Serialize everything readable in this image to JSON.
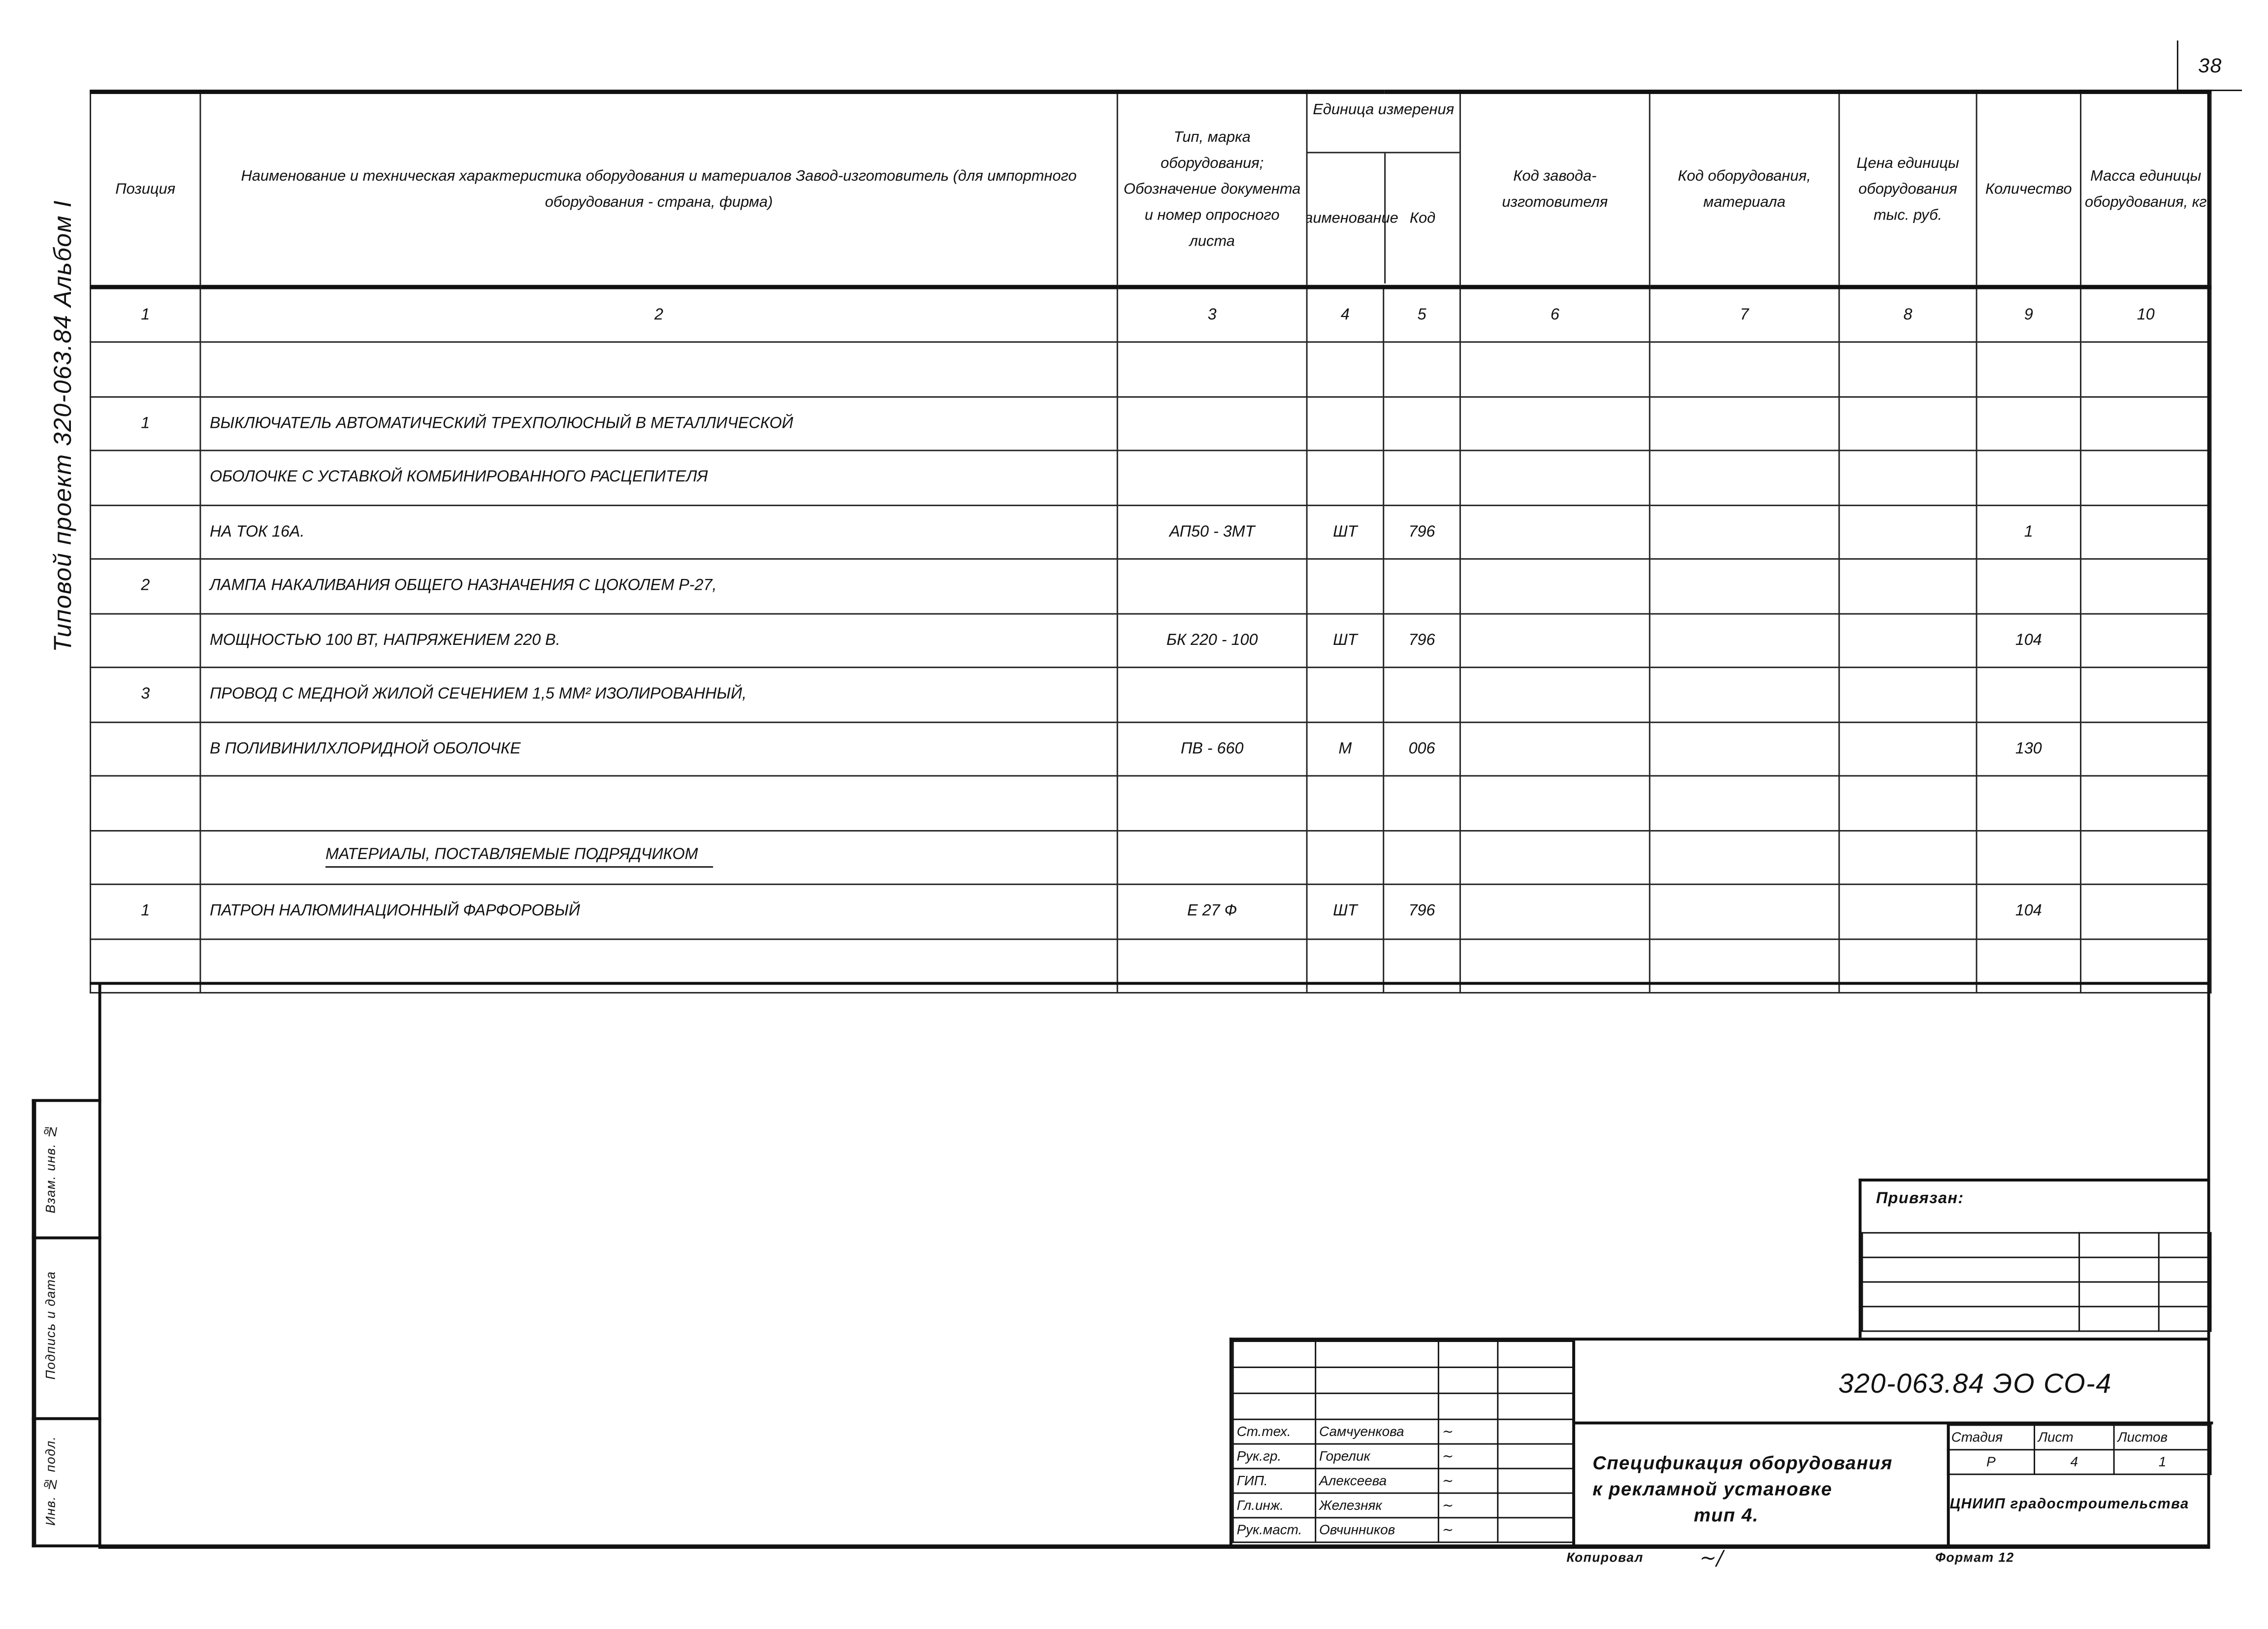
{
  "page_number": "38",
  "side_title": "Типовой проект 320-063.84 Альбом I",
  "side_stamp": {
    "replaced_inv": "Взам. инв. №",
    "signature_date": "Подпись и дата",
    "inv_orig": "Инв. № подл."
  },
  "table": {
    "headers": [
      "Позиция",
      "Наименование и техническая характеристика оборудования и материалов Завод-изготовитель (для импортного оборудования - страна, фирма)",
      "Тип, марка оборудования; Обозначение документа и номер опросного листа",
      "Наименование",
      "Код",
      "Код завода-изготовителя",
      "Код оборудования, материала",
      "Цена единицы оборудования тыс. руб.",
      "Количество",
      "Масса единицы оборудования, кг"
    ],
    "unit_group_header": "Единица измерения",
    "column_numbers": [
      "1",
      "2",
      "3",
      "4",
      "5",
      "6",
      "7",
      "8",
      "9",
      "10"
    ],
    "rows": [
      [
        "",
        "",
        "",
        "",
        "",
        "",
        "",
        "",
        "",
        ""
      ],
      [
        "1",
        "ВЫКЛЮЧАТЕЛЬ АВТОМАТИЧЕСКИЙ ТРЕХПОЛЮСНЫЙ В МЕТАЛЛИЧЕСКОЙ",
        "",
        "",
        "",
        "",
        "",
        "",
        "",
        ""
      ],
      [
        "",
        "ОБОЛОЧКЕ С УСТАВКОЙ КОМБИНИРОВАННОГО РАСЦЕПИТЕЛЯ",
        "",
        "",
        "",
        "",
        "",
        "",
        "",
        ""
      ],
      [
        "",
        "НА ТОК 16А.",
        "АП50 - 3МТ",
        "ШТ",
        "796",
        "",
        "",
        "",
        "1",
        ""
      ],
      [
        "2",
        "ЛАМПА НАКАЛИВАНИЯ ОБЩЕГО НАЗНАЧЕНИЯ С ЦОКОЛЕМ Р-27,",
        "",
        "",
        "",
        "",
        "",
        "",
        "",
        ""
      ],
      [
        "",
        "МОЩНОСТЬЮ 100 ВТ, НАПРЯЖЕНИЕМ 220 В.",
        "БК 220 - 100",
        "ШТ",
        "796",
        "",
        "",
        "",
        "104",
        ""
      ],
      [
        "3",
        "ПРОВОД С МЕДНОЙ ЖИЛОЙ СЕЧЕНИЕМ 1,5 ММ² ИЗОЛИРОВАННЫЙ,",
        "",
        "",
        "",
        "",
        "",
        "",
        "",
        ""
      ],
      [
        "",
        "В ПОЛИВИНИЛХЛОРИДНОЙ ОБОЛОЧКЕ",
        "ПВ - 660",
        "М",
        "006",
        "",
        "",
        "",
        "130",
        ""
      ],
      [
        "",
        "",
        "",
        "",
        "",
        "",
        "",
        "",
        "",
        ""
      ],
      [
        "",
        "§МАТЕРИАЛЫ, ПОСТАВЛЯЕМЫЕ ПОДРЯДЧИКОМ",
        "",
        "",
        "",
        "",
        "",
        "",
        "",
        ""
      ],
      [
        "1",
        "ПАТРОН НАЛЮМИНАЦИОННЫЙ ФАРФОРОВЫЙ",
        "Е 27 Ф",
        "ШТ",
        "796",
        "",
        "",
        "",
        "104",
        ""
      ],
      [
        "",
        "",
        "",
        "",
        "",
        "",
        "",
        "",
        "",
        ""
      ]
    ]
  },
  "binding": {
    "label": "Привязан:"
  },
  "title_block": {
    "document_code": "320-063.84 ЭО СО-4",
    "staff": [
      {
        "role": "Ст.тех.",
        "name": "Самчуенкова"
      },
      {
        "role": "Рук.гр.",
        "name": "Горелик"
      },
      {
        "role": "ГИП.",
        "name": "Алексеева"
      },
      {
        "role": "Гл.инж.",
        "name": "Железняк"
      },
      {
        "role": "Рук.маст.",
        "name": "Овчинников"
      }
    ],
    "description": [
      "Спецификация оборудования",
      "к рекламной установке",
      "тип 4."
    ],
    "stage_label": "Стадия",
    "sheet_label": "Лист",
    "sheets_label": "Листов",
    "stage": "Р",
    "sheet": "4",
    "sheets": "1",
    "organization": "ЦНИИП градостроительства",
    "copied_label": "Копировал",
    "format_label": "Формат 12"
  }
}
